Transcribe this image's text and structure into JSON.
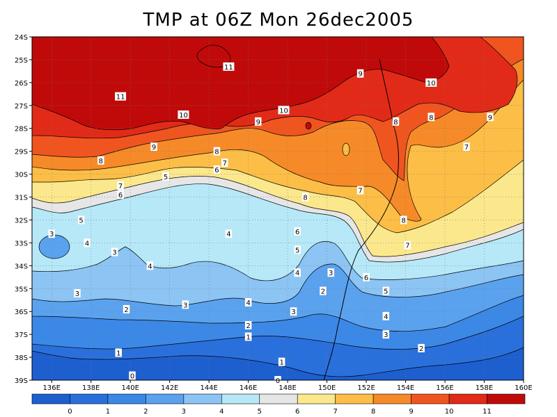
{
  "chart_data": {
    "type": "heatmap",
    "title": "TMP at 06Z Mon 26dec2005",
    "xlabel": "",
    "ylabel": "",
    "xlim": [
      135,
      160
    ],
    "ylim": [
      -39,
      -24
    ],
    "x_ticks": [
      "136E",
      "138E",
      "140E",
      "142E",
      "144E",
      "146E",
      "148E",
      "150E",
      "152E",
      "154E",
      "156E",
      "158E",
      "160E"
    ],
    "x_tick_values": [
      136,
      138,
      140,
      142,
      144,
      146,
      148,
      150,
      152,
      154,
      156,
      158,
      160
    ],
    "y_ticks": [
      "24S",
      "25S",
      "26S",
      "27S",
      "28S",
      "29S",
      "30S",
      "31S",
      "32S",
      "33S",
      "34S",
      "35S",
      "36S",
      "37S",
      "38S",
      "39S"
    ],
    "y_tick_values": [
      -24,
      -25,
      -26,
      -27,
      -28,
      -29,
      -30,
      -31,
      -32,
      -33,
      -34,
      -35,
      -36,
      -37,
      -38,
      -39
    ],
    "grid": true,
    "colorbar": {
      "labels": [
        "0",
        "1",
        "2",
        "3",
        "4",
        "5",
        "6",
        "7",
        "8",
        "9",
        "10",
        "11"
      ],
      "colors": [
        "#1e5fd0",
        "#2a70dc",
        "#3c88e6",
        "#5aa2ee",
        "#8cc4f4",
        "#b6e8f8",
        "#e6e6e6",
        "#fce88c",
        "#fcbe46",
        "#f68a28",
        "#f05520",
        "#e22a18",
        "#c00a0a"
      ]
    },
    "contour_labels": [
      {
        "text": "11",
        "lon": 145.0,
        "lat": -25.3
      },
      {
        "text": "11",
        "lon": 139.5,
        "lat": -26.6
      },
      {
        "text": "10",
        "lon": 142.7,
        "lat": -27.4
      },
      {
        "text": "10",
        "lon": 147.8,
        "lat": -27.2
      },
      {
        "text": "10",
        "lon": 155.3,
        "lat": -26.0
      },
      {
        "text": "9",
        "lon": 151.7,
        "lat": -25.6
      },
      {
        "text": "9",
        "lon": 146.5,
        "lat": -27.7
      },
      {
        "text": "9",
        "lon": 141.2,
        "lat": -28.8
      },
      {
        "text": "9",
        "lon": 158.3,
        "lat": -27.5
      },
      {
        "text": "8",
        "lon": 153.5,
        "lat": -27.7
      },
      {
        "text": "8",
        "lon": 155.3,
        "lat": -27.5
      },
      {
        "text": "8",
        "lon": 144.4,
        "lat": -29.0
      },
      {
        "text": "8",
        "lon": 138.5,
        "lat": -29.4
      },
      {
        "text": "8",
        "lon": 148.9,
        "lat": -31.0
      },
      {
        "text": "8",
        "lon": 153.9,
        "lat": -32.0
      },
      {
        "text": "7",
        "lon": 144.8,
        "lat": -29.5
      },
      {
        "text": "7",
        "lon": 139.5,
        "lat": -30.5
      },
      {
        "text": "7",
        "lon": 151.7,
        "lat": -30.7
      },
      {
        "text": "7",
        "lon": 154.1,
        "lat": -33.1
      },
      {
        "text": "7",
        "lon": 157.1,
        "lat": -28.8
      },
      {
        "text": "6",
        "lon": 144.4,
        "lat": -29.8
      },
      {
        "text": "6",
        "lon": 139.5,
        "lat": -30.9
      },
      {
        "text": "6",
        "lon": 148.5,
        "lat": -32.5
      },
      {
        "text": "6",
        "lon": 152.0,
        "lat": -34.5
      },
      {
        "text": "5",
        "lon": 141.8,
        "lat": -30.1
      },
      {
        "text": "5",
        "lon": 137.5,
        "lat": -32.0
      },
      {
        "text": "5",
        "lon": 148.5,
        "lat": -33.3
      },
      {
        "text": "5",
        "lon": 153.0,
        "lat": -35.1
      },
      {
        "text": "4",
        "lon": 145.0,
        "lat": -32.6
      },
      {
        "text": "4",
        "lon": 141.0,
        "lat": -34.0
      },
      {
        "text": "4",
        "lon": 137.8,
        "lat": -33.0
      },
      {
        "text": "4",
        "lon": 146.0,
        "lat": -35.6
      },
      {
        "text": "4",
        "lon": 148.5,
        "lat": -34.3
      },
      {
        "text": "4",
        "lon": 153.0,
        "lat": -36.2
      },
      {
        "text": "3",
        "lon": 136.0,
        "lat": -32.6
      },
      {
        "text": "3",
        "lon": 139.2,
        "lat": -33.4
      },
      {
        "text": "3",
        "lon": 137.3,
        "lat": -35.2
      },
      {
        "text": "3",
        "lon": 142.8,
        "lat": -35.7
      },
      {
        "text": "3",
        "lon": 148.3,
        "lat": -36.0
      },
      {
        "text": "3",
        "lon": 150.2,
        "lat": -34.3
      },
      {
        "text": "3",
        "lon": 153.0,
        "lat": -37.0
      },
      {
        "text": "2",
        "lon": 139.8,
        "lat": -35.9
      },
      {
        "text": "2",
        "lon": 146.0,
        "lat": -36.6
      },
      {
        "text": "2",
        "lon": 149.8,
        "lat": -35.1
      },
      {
        "text": "2",
        "lon": 154.8,
        "lat": -37.6
      },
      {
        "text": "1",
        "lon": 146.0,
        "lat": -37.1
      },
      {
        "text": "1",
        "lon": 139.4,
        "lat": -37.8
      },
      {
        "text": "1",
        "lon": 147.7,
        "lat": -38.2
      },
      {
        "text": "0",
        "lon": 140.1,
        "lat": -38.8
      },
      {
        "text": "0",
        "lon": 147.5,
        "lat": -39.0
      }
    ]
  }
}
